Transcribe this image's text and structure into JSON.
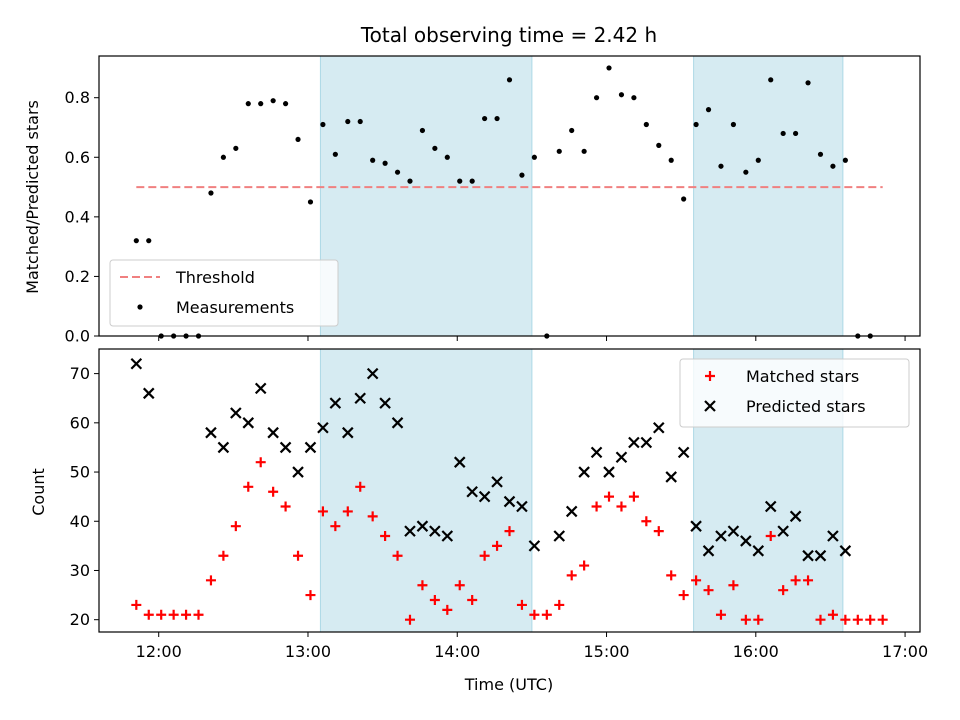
{
  "chart_data": [
    {
      "type": "scatter",
      "title": "Total observing time = 2.42 h",
      "xlabel": "",
      "ylabel": "Matched/Predicted stars",
      "xlim": [
        "11:36",
        "17:06"
      ],
      "ylim": [
        0,
        0.94
      ],
      "yticks": [
        "0.0",
        "0.2",
        "0.4",
        "0.6",
        "0.8"
      ],
      "shaded_intervals": [
        [
          "13:05",
          "14:30"
        ],
        [
          "15:35",
          "16:35"
        ]
      ],
      "legend_placement": "lower-left",
      "series": [
        {
          "name": "Threshold",
          "style": "dashed-line",
          "color": "#f08080",
          "x": [
            "11:51",
            "16:51"
          ],
          "y": [
            0.5,
            0.5
          ]
        },
        {
          "name": "Measurements",
          "style": "points",
          "color": "#000000",
          "x": [
            "11:51",
            "11:56",
            "12:01",
            "12:06",
            "12:11",
            "12:16",
            "12:21",
            "12:26",
            "12:31",
            "12:36",
            "12:41",
            "12:46",
            "12:51",
            "12:56",
            "13:01",
            "13:06",
            "13:11",
            "13:16",
            "13:21",
            "13:26",
            "13:31",
            "13:36",
            "13:41",
            "13:46",
            "13:51",
            "13:56",
            "14:01",
            "14:06",
            "14:11",
            "14:16",
            "14:21",
            "14:26",
            "14:31",
            "14:36",
            "14:41",
            "14:46",
            "14:51",
            "14:56",
            "15:01",
            "15:06",
            "15:11",
            "15:16",
            "15:21",
            "15:26",
            "15:31",
            "15:36",
            "15:41",
            "15:46",
            "15:51",
            "15:56",
            "16:01",
            "16:06",
            "16:11",
            "16:16",
            "16:21",
            "16:26",
            "16:31",
            "16:36",
            "16:41",
            "16:46"
          ],
          "y": [
            0.32,
            0.32,
            0.0,
            0.0,
            0.0,
            0.0,
            0.48,
            0.6,
            0.63,
            0.78,
            0.78,
            0.79,
            0.78,
            0.66,
            0.45,
            0.71,
            0.61,
            0.72,
            0.72,
            0.59,
            0.58,
            0.55,
            0.52,
            0.69,
            0.63,
            0.6,
            0.52,
            0.52,
            0.73,
            0.73,
            0.86,
            0.54,
            0.6,
            0.0,
            0.62,
            0.69,
            0.62,
            0.8,
            0.9,
            0.81,
            0.8,
            0.71,
            0.64,
            0.59,
            0.46,
            0.71,
            0.76,
            0.57,
            0.71,
            0.55,
            0.59,
            0.86,
            0.68,
            0.68,
            0.85,
            0.61,
            0.57,
            0.59,
            0.0,
            0.0
          ]
        }
      ]
    },
    {
      "type": "scatter",
      "title": "",
      "xlabel": "Time (UTC)",
      "ylabel": "Count",
      "xlim": [
        "11:36",
        "17:06"
      ],
      "ylim": [
        17.5,
        75
      ],
      "xticks": [
        "12:00",
        "13:00",
        "14:00",
        "15:00",
        "16:00",
        "17:00"
      ],
      "yticks": [
        "20",
        "30",
        "40",
        "50",
        "60",
        "70"
      ],
      "shaded_intervals": [
        [
          "13:05",
          "14:30"
        ],
        [
          "15:35",
          "16:35"
        ]
      ],
      "legend_placement": "upper-right",
      "series": [
        {
          "name": "Matched stars",
          "marker": "plus",
          "color": "#ff0000",
          "x": [
            "11:51",
            "11:56",
            "12:01",
            "12:06",
            "12:11",
            "12:16",
            "12:21",
            "12:26",
            "12:31",
            "12:36",
            "12:41",
            "12:46",
            "12:51",
            "12:56",
            "13:01",
            "13:06",
            "13:11",
            "13:16",
            "13:21",
            "13:26",
            "13:31",
            "13:36",
            "13:41",
            "13:46",
            "13:51",
            "13:56",
            "14:01",
            "14:06",
            "14:11",
            "14:16",
            "14:21",
            "14:26",
            "14:31",
            "14:36",
            "14:41",
            "14:46",
            "14:51",
            "14:56",
            "15:01",
            "15:06",
            "15:11",
            "15:16",
            "15:21",
            "15:26",
            "15:31",
            "15:36",
            "15:41",
            "15:46",
            "15:51",
            "15:56",
            "16:01",
            "16:06",
            "16:11",
            "16:16",
            "16:21",
            "16:26",
            "16:31",
            "16:36",
            "16:41",
            "16:46",
            "16:51"
          ],
          "y": [
            23,
            21,
            21,
            21,
            21,
            21,
            28,
            33,
            39,
            47,
            52,
            46,
            43,
            33,
            25,
            42,
            39,
            42,
            47,
            41,
            37,
            33,
            20,
            27,
            24,
            22,
            27,
            24,
            33,
            35,
            38,
            23,
            21,
            21,
            23,
            29,
            31,
            43,
            45,
            43,
            45,
            40,
            38,
            29,
            25,
            28,
            26,
            21,
            27,
            20,
            20,
            37,
            26,
            28,
            28,
            20,
            21,
            20,
            20,
            20,
            20
          ]
        },
        {
          "name": "Predicted stars",
          "marker": "x",
          "color": "#000000",
          "x": [
            "11:51",
            "11:56",
            "12:21",
            "12:26",
            "12:31",
            "12:36",
            "12:41",
            "12:46",
            "12:51",
            "12:56",
            "13:01",
            "13:06",
            "13:11",
            "13:16",
            "13:21",
            "13:26",
            "13:31",
            "13:36",
            "13:41",
            "13:46",
            "13:51",
            "13:56",
            "14:01",
            "14:06",
            "14:11",
            "14:16",
            "14:21",
            "14:26",
            "14:31",
            "14:41",
            "14:46",
            "14:51",
            "14:56",
            "15:01",
            "15:06",
            "15:11",
            "15:16",
            "15:21",
            "15:26",
            "15:31",
            "15:36",
            "15:41",
            "15:46",
            "15:51",
            "15:56",
            "16:01",
            "16:06",
            "16:11",
            "16:16",
            "16:21",
            "16:26",
            "16:31",
            "16:36"
          ],
          "y": [
            72,
            66,
            58,
            55,
            62,
            60,
            67,
            58,
            55,
            50,
            55,
            59,
            64,
            58,
            65,
            70,
            64,
            60,
            38,
            39,
            38,
            37,
            52,
            46,
            45,
            48,
            44,
            43,
            35,
            37,
            42,
            50,
            54,
            50,
            53,
            56,
            56,
            59,
            49,
            54,
            39,
            34,
            37,
            38,
            36,
            34,
            43,
            38,
            41,
            33,
            33,
            37,
            34
          ]
        }
      ]
    }
  ]
}
